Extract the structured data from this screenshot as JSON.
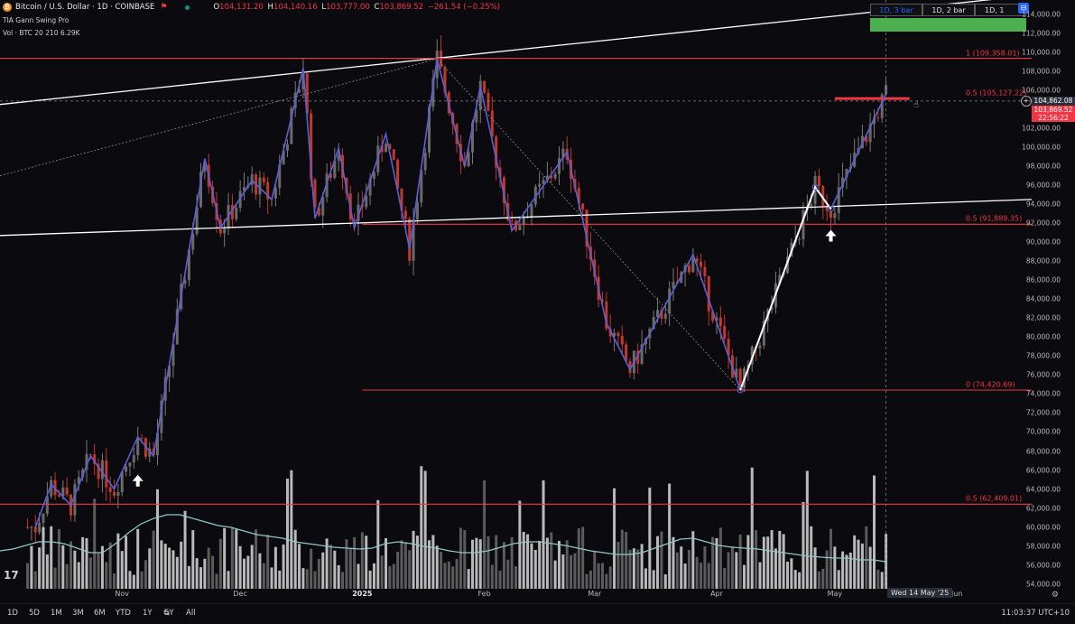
{
  "header": {
    "logo_glyph": "₿",
    "title": "Bitcoin / U.S. Dollar · 1D · COINBASE",
    "open_label": "O",
    "open": "104,131.20",
    "high_label": "H",
    "high": "104,140.16",
    "low_label": "L",
    "low": "103,777.00",
    "close_label": "C",
    "close": "103,869.52",
    "change": "−261.54 (−0.25%)",
    "flag_glyph": "⚑"
  },
  "indicators": {
    "gann": "TIA Gann Swing Pro",
    "volume": "Vol · BTC 20  210  6.29K"
  },
  "timeframes": {
    "a": "1D, 3 bar",
    "b": "1D, 2 bar",
    "c": "1D, 1",
    "btn_glyph": "⊟",
    "arrows": "⌄ ‥"
  },
  "y_axis": [
    {
      "label": "114,000.00",
      "value": 114000
    },
    {
      "label": "112,000.00",
      "value": 112000
    },
    {
      "label": "110,000.00",
      "value": 110000
    },
    {
      "label": "108,000.00",
      "value": 108000
    },
    {
      "label": "106,000.00",
      "value": 106000
    },
    {
      "label": "102,000.00",
      "value": 102000
    },
    {
      "label": "100,000.00",
      "value": 100000
    },
    {
      "label": "98,000.00",
      "value": 98000
    },
    {
      "label": "96,000.00",
      "value": 96000
    },
    {
      "label": "94,000.00",
      "value": 94000
    },
    {
      "label": "92,000.00",
      "value": 92000
    },
    {
      "label": "90,000.00",
      "value": 90000
    },
    {
      "label": "88,000.00",
      "value": 88000
    },
    {
      "label": "86,000.00",
      "value": 86000
    },
    {
      "label": "84,000.00",
      "value": 84000
    },
    {
      "label": "82,000.00",
      "value": 82000
    },
    {
      "label": "80,000.00",
      "value": 80000
    },
    {
      "label": "78,000.00",
      "value": 78000
    },
    {
      "label": "76,000.00",
      "value": 76000
    },
    {
      "label": "74,000.00",
      "value": 74000
    },
    {
      "label": "72,000.00",
      "value": 72000
    },
    {
      "label": "70,000.00",
      "value": 70000
    },
    {
      "label": "68,000.00",
      "value": 68000
    },
    {
      "label": "66,000.00",
      "value": 66000
    },
    {
      "label": "64,000.00",
      "value": 64000
    },
    {
      "label": "62,000.00",
      "value": 62000
    },
    {
      "label": "60,000.00",
      "value": 60000
    },
    {
      "label": "58,000.00",
      "value": 58000
    },
    {
      "label": "56,000.00",
      "value": 56000
    },
    {
      "label": "54,000.00",
      "value": 54000
    }
  ],
  "x_axis": [
    {
      "label": "Nov",
      "date": "2024-11-01",
      "strong": false
    },
    {
      "label": "Dec",
      "date": "2024-12-01",
      "strong": false
    },
    {
      "label": "2025",
      "date": "2025-01-01",
      "strong": true
    },
    {
      "label": "Feb",
      "date": "2025-02-01",
      "strong": false
    },
    {
      "label": "Mar",
      "date": "2025-03-01",
      "strong": false
    },
    {
      "label": "Apr",
      "date": "2025-04-01",
      "strong": false
    },
    {
      "label": "May",
      "date": "2025-05-01",
      "strong": false
    },
    {
      "label": "Jun",
      "date": "2025-06-01",
      "strong": false
    }
  ],
  "cursor_date": "Wed 14 May '25",
  "price_tags": {
    "last": "104,862.08",
    "close": "103,869.52",
    "countdown": "22:56:22"
  },
  "fib_levels": [
    {
      "label": "1 (109,358.01)",
      "value": 109358.01
    },
    {
      "label": "0.5 (105,127.22)",
      "value": 105127.22
    },
    {
      "label": "0.5 (91,889.35)",
      "value": 91889.35
    },
    {
      "label": "0 (74,420.69)",
      "value": 74420.69
    },
    {
      "label": "0.5 (62,409.01)",
      "value": 62409.01
    }
  ],
  "bottom_bar": {
    "timeframes": [
      "1D",
      "5D",
      "1M",
      "3M",
      "6M",
      "YTD",
      "1Y",
      "5Y",
      "All"
    ],
    "compare_glyph": "⇆",
    "clock": "11:03:37 UTC+10"
  },
  "tv_logo": "17",
  "settings_glyph": "⚙",
  "colors": {
    "background": "#0b0b0f",
    "fib_line": "#f23645",
    "swing_line": "#5b5fd6",
    "trendline": "#ffffff",
    "up_candle": "#6a6a6a",
    "down_candle": "#c0392b",
    "volume_ma": "#8fc7c7",
    "highlight": "#4caf50"
  },
  "chart_data": {
    "type": "candlestick",
    "symbol": "Bitcoin / U.S. Dollar",
    "interval": "1D",
    "ylim": [
      53500,
      115500
    ],
    "x_range": [
      "2024-10-01",
      "2025-06-20"
    ],
    "y_scale": "linear",
    "grid": false,
    "swing_points": [
      [
        "2024-10-10",
        60000
      ],
      [
        "2024-10-14",
        64500
      ],
      [
        "2024-10-19",
        62300
      ],
      [
        "2024-10-24",
        67500
      ],
      [
        "2024-10-30",
        64000
      ],
      [
        "2024-11-05",
        69500
      ],
      [
        "2024-11-09",
        67500
      ],
      [
        "2024-11-22",
        98800
      ],
      [
        "2024-11-26",
        91500
      ],
      [
        "2024-12-04",
        96500
      ],
      [
        "2024-12-09",
        94500
      ],
      [
        "2024-12-17",
        108300
      ],
      [
        "2024-12-20",
        92500
      ],
      [
        "2024-12-26",
        99900
      ],
      [
        "2024-12-30",
        91500
      ],
      [
        "2025-01-07",
        101400
      ],
      [
        "2025-01-13",
        89300
      ],
      [
        "2025-01-20",
        109300
      ],
      [
        "2025-01-27",
        98000
      ],
      [
        "2025-01-31",
        106400
      ],
      [
        "2025-02-08",
        91200
      ],
      [
        "2025-02-22",
        99500
      ],
      [
        "2025-03-04",
        81500
      ],
      [
        "2025-03-10",
        76600
      ],
      [
        "2025-03-26",
        88700
      ],
      [
        "2025-04-07",
        74420.69
      ],
      [
        "2025-04-26",
        95800
      ],
      [
        "2025-04-30",
        93500
      ],
      [
        "2025-05-14",
        105600
      ]
    ],
    "white_swings": [
      [
        "2025-04-07",
        74420.69
      ],
      [
        "2025-04-26",
        95800
      ],
      [
        "2025-04-30",
        93500
      ]
    ],
    "trendlines": [
      {
        "from": [
          "2024-10-01",
          90700
        ],
        "to": [
          "2025-06-20",
          94500
        ]
      },
      {
        "from": [
          "2024-10-01",
          104500
        ],
        "to": [
          "2025-06-20",
          116000
        ]
      }
    ],
    "fib_lines": [
      {
        "value": 109358.01,
        "from": "2024-10-01",
        "to": "2025-06-20"
      },
      {
        "value": 105127.22,
        "from": "2025-05-01",
        "to": "2025-05-20"
      },
      {
        "value": 91889.35,
        "from": "2025-01-01",
        "to": "2025-06-20"
      },
      {
        "value": 74420.69,
        "from": "2025-01-01",
        "to": "2025-06-20"
      },
      {
        "value": 62409.01,
        "from": "2024-10-01",
        "to": "2025-06-20"
      }
    ],
    "last_price": 104862.08,
    "close_price": 103869.52,
    "volume_ma": [
      0.52,
      0.54,
      0.58,
      0.62,
      0.62,
      0.6,
      0.55,
      0.5,
      0.5,
      0.6,
      0.72,
      0.82,
      0.88,
      0.92,
      0.92,
      0.88,
      0.84,
      0.8,
      0.78,
      0.74,
      0.7,
      0.68,
      0.66,
      0.62,
      0.6,
      0.58,
      0.56,
      0.55,
      0.54,
      0.55,
      0.6,
      0.62,
      0.6,
      0.57,
      0.55,
      0.52,
      0.5,
      0.5,
      0.52,
      0.56,
      0.6,
      0.62,
      0.62,
      0.6,
      0.58,
      0.55,
      0.52,
      0.5,
      0.48,
      0.48,
      0.5,
      0.55,
      0.6,
      0.65,
      0.66,
      0.62,
      0.58,
      0.56,
      0.55,
      0.54,
      0.52,
      0.5,
      0.48,
      0.46,
      0.45,
      0.44,
      0.44,
      0.42,
      0.42,
      0.4
    ]
  }
}
